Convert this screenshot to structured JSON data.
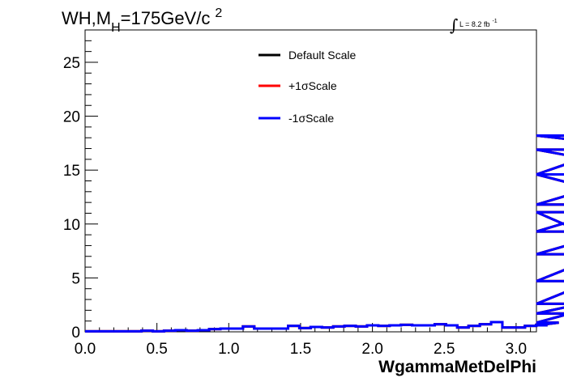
{
  "title": {
    "main": "WH,M",
    "sub": "H",
    "mass": "=175GeV/c",
    "sup": "2"
  },
  "luminosity": {
    "symbol": "∫",
    "text": "L = 8.2 fb",
    "sup": "-1"
  },
  "chart_data": {
    "type": "line",
    "xlabel": "WgammaMetDelPhi",
    "ylabel": "",
    "xlim": [
      0,
      3.1416
    ],
    "ylim": [
      0,
      28
    ],
    "x_ticks": [
      "0.0",
      "0.5",
      "1.0",
      "1.5",
      "2.0",
      "2.5",
      "3.0"
    ],
    "y_ticks": [
      "0",
      "5",
      "10",
      "15",
      "20",
      "25"
    ],
    "legend_position": "top-center",
    "bin_width": 0.0785,
    "series": [
      {
        "name": "Default Scale",
        "color": "#000000",
        "values": [
          0.05,
          0.05,
          0.05,
          0.05,
          0.05,
          0.1,
          0.05,
          0.1,
          0.15,
          0.1,
          0.15,
          0.25,
          0.3,
          0.3,
          0.5,
          0.3,
          0.3,
          0.3,
          0.55,
          0.35,
          0.45,
          0.4,
          0.5,
          0.55,
          0.5,
          0.6,
          0.55,
          0.6,
          0.65,
          0.6,
          0.6,
          0.7,
          0.6,
          0.4,
          0.55,
          0.7,
          0.9,
          0.4,
          0.4,
          0.55,
          0.65,
          0.6,
          0.85,
          1.7,
          2.6,
          4.7,
          7.2,
          9.3,
          11.8,
          14.6,
          18.2,
          16.9,
          14.6,
          11.1,
          4.7
        ]
      },
      {
        "name": "+1σScale",
        "color": "#ff0000",
        "values": [
          0.05,
          0.05,
          0.05,
          0.05,
          0.05,
          0.1,
          0.05,
          0.1,
          0.15,
          0.1,
          0.15,
          0.25,
          0.3,
          0.3,
          0.5,
          0.3,
          0.3,
          0.3,
          0.55,
          0.35,
          0.45,
          0.4,
          0.5,
          0.55,
          0.5,
          0.6,
          0.55,
          0.6,
          0.65,
          0.6,
          0.6,
          0.7,
          0.6,
          0.4,
          0.55,
          0.7,
          0.9,
          0.4,
          0.4,
          0.55,
          0.65,
          0.6,
          0.85,
          1.7,
          2.6,
          4.7,
          7.2,
          9.3,
          11.8,
          14.6,
          18.2,
          16.9,
          14.6,
          11.1,
          4.7
        ]
      },
      {
        "name": "-1σScale",
        "color": "#0000ff",
        "values": [
          0.05,
          0.05,
          0.05,
          0.05,
          0.05,
          0.1,
          0.05,
          0.1,
          0.15,
          0.1,
          0.15,
          0.25,
          0.3,
          0.3,
          0.5,
          0.3,
          0.3,
          0.3,
          0.55,
          0.35,
          0.45,
          0.4,
          0.5,
          0.55,
          0.5,
          0.6,
          0.55,
          0.6,
          0.65,
          0.6,
          0.6,
          0.7,
          0.6,
          0.4,
          0.55,
          0.7,
          0.9,
          0.4,
          0.4,
          0.55,
          0.65,
          0.6,
          0.85,
          1.7,
          2.6,
          4.7,
          7.2,
          9.3,
          11.8,
          14.6,
          18.2,
          16.9,
          14.6,
          11.1,
          4.7
        ]
      }
    ]
  }
}
